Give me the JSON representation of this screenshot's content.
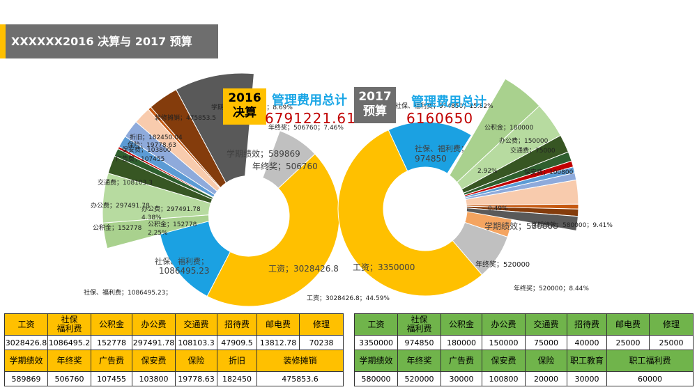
{
  "header": {
    "title": "XXXXXX2016 决算与 2017 预算"
  },
  "y2016": {
    "year": "2016",
    "kind": "决算",
    "total_label": "管理费用总计",
    "total_value": "6791221.61",
    "color": "#ffc000"
  },
  "y2017": {
    "year": "2017",
    "kind": "预算",
    "total_label": "管理费用总计",
    "total_value": "6160650",
    "color": "#70b44b"
  },
  "table2016": {
    "row1_headers": [
      "工资",
      "社保\n福利费",
      "公积金",
      "办公费",
      "交通费",
      "招待费",
      "邮电费",
      "修理"
    ],
    "row1_values": [
      "3028426.8",
      "1086495.2",
      "152778",
      "297491.78",
      "108103.3",
      "47909.5",
      "13812.78",
      "70238"
    ],
    "row2_headers": [
      "学期绩效",
      "年终奖",
      "广告费",
      "保安费",
      "保险",
      "折旧",
      "装修摊销"
    ],
    "row2_values": [
      "589869",
      "506760",
      "107455",
      "103800",
      "19778.63",
      "182450",
      "475853.6"
    ]
  },
  "table2017": {
    "row1_headers": [
      "工资",
      "社保\n福利费",
      "公积金",
      "办公费",
      "交通费",
      "招待费",
      "邮电费",
      "修理"
    ],
    "row1_values": [
      "3350000",
      "974850",
      "180000",
      "150000",
      "75000",
      "40000",
      "25000",
      "25000"
    ],
    "row2_headers": [
      "学期绩效",
      "年终奖",
      "广告费",
      "保安费",
      "保险",
      "职工教育",
      "职工福利费"
    ],
    "row2_values": [
      "580000",
      "520000",
      "30000",
      "100800",
      "20000",
      "30000",
      "60000"
    ]
  },
  "chart_data": [
    {
      "type": "pie",
      "variant": "doughnut-of-doughnut",
      "categories": [
        "工资",
        "社保、福利费",
        "学期绩效",
        "年终奖",
        "公积金",
        "办公费",
        "交通费",
        "招待费",
        "邮电费",
        "修理",
        "广告费",
        "保安费",
        "保险",
        "折旧",
        "装修摊销"
      ],
      "values": [
        3028426.8,
        1086495.23,
        589869,
        506760,
        152778,
        297491.78,
        108103.3,
        47909.5,
        13812.78,
        70238,
        107455,
        103800,
        19778.63,
        182450.04,
        475853.5
      ],
      "labels": {
        "wage": "工资；3028426.8",
        "welfare": "社保、福利费；1086495.23",
        "bonus": "年终奖；506760",
        "perf": "学期绩效；589869",
        "welfare_outer": "社保、福利费；1086495.23；",
        "wage_outer": "工资；3028426.8；44.59%",
        "fund": "公积金；152778",
        "fund_pct": "2.25%",
        "office": "办公费；297491.78",
        "office_pct": "4.38%",
        "traffic": "交通费；108103.3",
        "ad": "广告费；107455",
        "security": "保安费；103800",
        "insurance": "保险；19778.63",
        "depr": "折旧；182450.04",
        "reno": "装修摊销；475853.5",
        "perf_pct": "学期绩效；589869；8.69%",
        "bonus_pct": "年终奖；506760；7.46%"
      },
      "colors": [
        "#ffc000",
        "#1ba1e2",
        "#f4a460",
        "#c0c0c0",
        "#a9d18e",
        "#b7dba0",
        "#375623",
        "#2e5f2e",
        "#c00000",
        "#5b9bd5",
        "#8eaadb",
        "#f8cbad",
        "#c65911",
        "#843c0c",
        "#595959"
      ]
    },
    {
      "type": "pie",
      "variant": "doughnut-of-doughnut",
      "categories": [
        "工资",
        "社保、福利费",
        "学期绩效",
        "年终奖",
        "公积金",
        "办公费",
        "交通费",
        "招待费",
        "邮电费",
        "修理",
        "广告费",
        "保安费",
        "保险",
        "职工教育",
        "职工福利费"
      ],
      "values": [
        3350000,
        974850,
        580000,
        520000,
        180000,
        150000,
        75000,
        40000,
        25000,
        25000,
        30000,
        100800,
        20000,
        30000,
        60000
      ],
      "labels": {
        "wage": "工资；3350000",
        "welfare": "社保、福利费；974850",
        "perf": "学期绩效；580000",
        "bonus": "年终奖；520000",
        "welfare_outer": "社保、福利费；974850；15.82%",
        "perf_outer": "学期绩效；580000；9.41%",
        "bonus_outer": "年终奖；520000；8.44%",
        "fund": "公积金；180000",
        "office": "办公费；150000",
        "traffic": "交通费；75000",
        "security": "保安费；100800",
        "fund_pct": "2.92%",
        "misc_pct": "0.49%"
      },
      "colors": [
        "#ffc000",
        "#1ba1e2",
        "#f4a460",
        "#c0c0c0",
        "#a9d18e",
        "#b7dba0",
        "#375623",
        "#2e5f2e",
        "#c00000",
        "#5b9bd5",
        "#8eaadb",
        "#f8cbad",
        "#c65911",
        "#843c0c",
        "#595959"
      ]
    }
  ]
}
